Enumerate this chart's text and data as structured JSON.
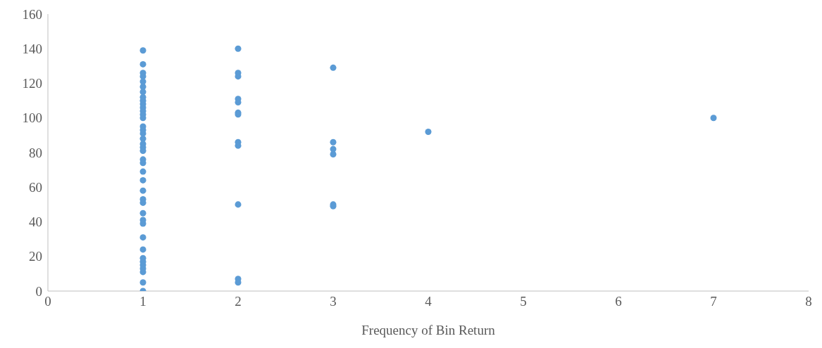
{
  "chart_data": {
    "type": "scatter",
    "xlabel": "Frequency of Bin Return",
    "x": [
      1,
      1,
      1,
      1,
      1,
      1,
      1,
      1,
      1,
      1,
      1,
      1,
      1,
      1,
      1,
      1,
      1,
      1,
      1,
      1,
      1,
      1,
      1,
      1,
      1,
      1,
      1,
      1,
      1,
      1,
      1,
      1,
      1,
      1,
      1,
      1,
      1,
      1,
      1,
      1,
      2,
      2,
      2,
      2,
      2,
      2,
      2,
      2,
      2,
      2,
      2,
      2,
      3,
      3,
      3,
      3,
      3,
      3,
      4,
      7
    ],
    "values": [
      139,
      131,
      126,
      124,
      121,
      118,
      115,
      112,
      110,
      108,
      106,
      104,
      102,
      100,
      95,
      93,
      91,
      88,
      85,
      83,
      81,
      76,
      74,
      69,
      64,
      58,
      53,
      51,
      45,
      41,
      39,
      31,
      24,
      19,
      17,
      15,
      13,
      11,
      5,
      0,
      140,
      126,
      124,
      111,
      109,
      103,
      102,
      86,
      84,
      50,
      7,
      5,
      129,
      86,
      82,
      79,
      50,
      49,
      92,
      100
    ],
    "color": "#5b9bd5",
    "marker": "circle",
    "grid": false,
    "xlim": [
      0,
      8
    ],
    "xticks": [
      0,
      1,
      2,
      3,
      4,
      5,
      6,
      7,
      8
    ],
    "ylim": [
      0,
      160
    ],
    "yticks": [
      0,
      20,
      40,
      60,
      80,
      100,
      120,
      140,
      160
    ]
  }
}
